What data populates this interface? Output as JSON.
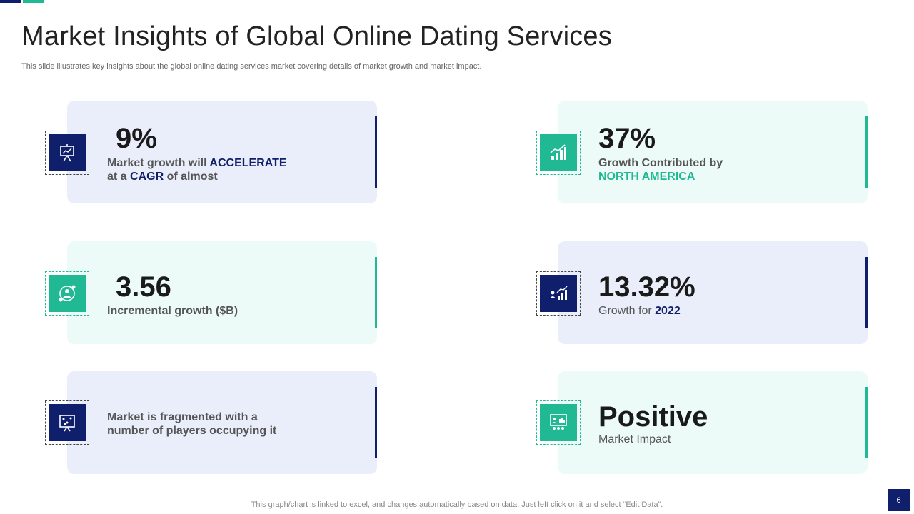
{
  "title": "Market Insights of Global Online Dating Services",
  "subtitle": "This slide illustrates key insights about the global online dating services market covering details of market growth and market impact.",
  "cards": [
    {
      "value": "9%",
      "line1_pre": "Market growth will ",
      "line1_hl": "ACCELERATE",
      "line2_pre": "at a ",
      "line2_hl": "CAGR",
      "line2_post": " of almost",
      "icon": "presentation-board-icon"
    },
    {
      "value": "37%",
      "line1": "Growth Contributed by",
      "line2_hl": "NORTH AMERICA",
      "icon": "growth-chart-icon"
    },
    {
      "value": "3.56",
      "line1": "Incremental growth ($B)",
      "icon": "user-cycle-icon"
    },
    {
      "value": "13.32%",
      "line1_pre": "Growth  for ",
      "line1_hl": "2022",
      "icon": "team-growth-icon"
    },
    {
      "line1": "Market is fragmented with a",
      "line2": "number of players occupying it",
      "icon": "scatter-board-icon"
    },
    {
      "value": "Positive",
      "line1": "Market Impact",
      "icon": "presentation-audience-icon"
    }
  ],
  "footer": "This graph/chart is linked to excel,  and changes automatically based on data. Just left click on it and select “Edit Data”.",
  "page_number": "6",
  "colors": {
    "navy": "#0f1f6b",
    "teal": "#20b994",
    "card_blue": "#eaedfa",
    "card_mint": "#ecfbf7"
  }
}
